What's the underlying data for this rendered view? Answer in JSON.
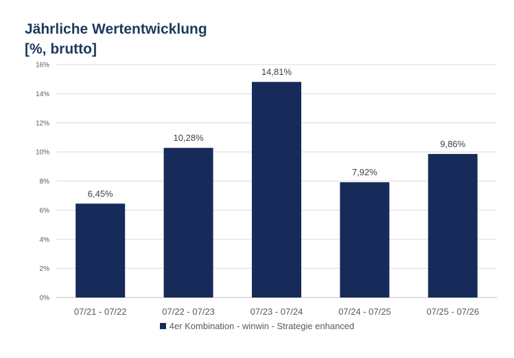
{
  "title_line1": "Jährliche Wertentwicklung",
  "title_line2": "[%, brutto]",
  "chart_data": {
    "type": "bar",
    "categories": [
      "07/21 - 07/22",
      "07/22 - 07/23",
      "07/23 - 07/24",
      "07/24 - 07/25",
      "07/25 - 07/26"
    ],
    "series": [
      {
        "name": "4er Kombination - winwin - Strategie enhanced",
        "values": [
          6.45,
          10.28,
          14.81,
          7.92,
          9.86
        ],
        "data_labels": [
          "6,45%",
          "10,28%",
          "14,81%",
          "7,92%",
          "9,86%"
        ],
        "color": "#172b5a"
      }
    ],
    "y_ticks": [
      "0%",
      "2%",
      "4%",
      "6%",
      "8%",
      "10%",
      "12%",
      "14%",
      "16%"
    ],
    "ylim": [
      0,
      16
    ],
    "grid": true,
    "legend_position": "bottom"
  }
}
